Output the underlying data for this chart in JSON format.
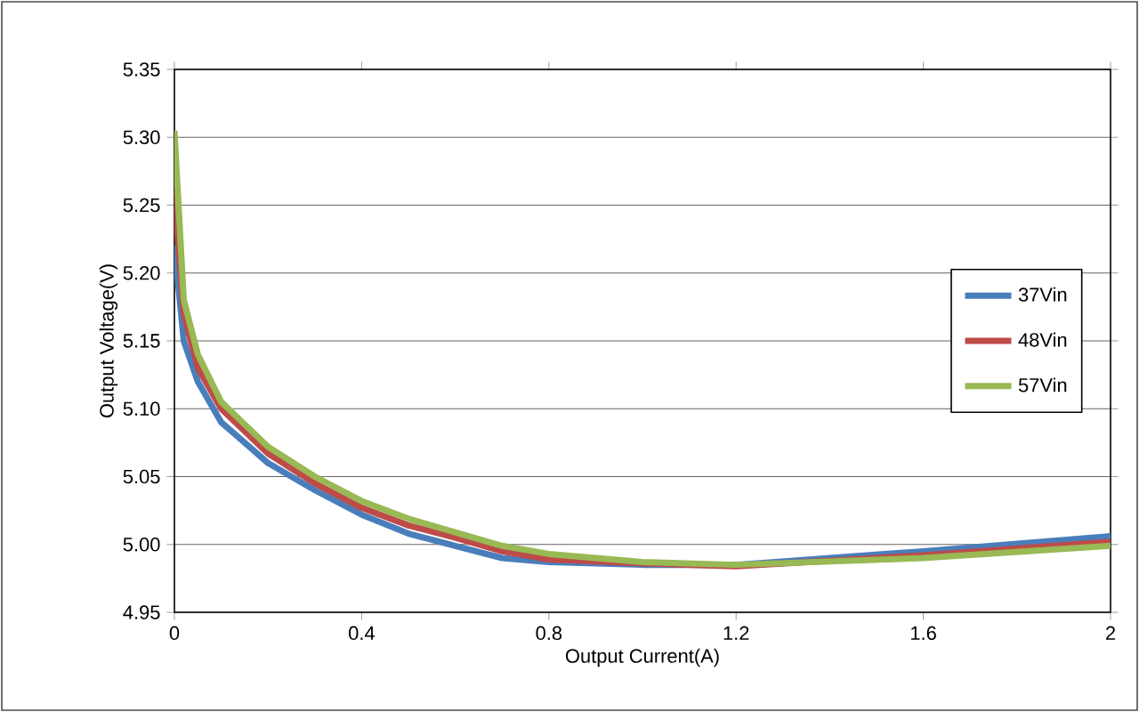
{
  "chart_data": {
    "type": "line",
    "xlabel": "Output Current(A)",
    "ylabel": "Output Voltage(V)",
    "xlim": [
      0,
      2
    ],
    "xticks": [
      0,
      0.4,
      0.8,
      1.2,
      1.6,
      2
    ],
    "ylim": [
      4.95,
      5.35
    ],
    "yticks": [
      4.95,
      {
        "value": 5.0,
        "label": "5.00"
      },
      5.05,
      {
        "value": 5.1,
        "label": "5.10"
      },
      5.15,
      {
        "value": 5.2,
        "label": "5.20"
      },
      5.25,
      {
        "value": 5.3,
        "label": "5.30"
      },
      5.35
    ],
    "grid": "y",
    "legend": "right",
    "marker": "none",
    "line_style": "solid",
    "x": [
      0,
      0.02,
      0.05,
      0.1,
      0.2,
      0.3,
      0.4,
      0.5,
      0.6,
      0.7,
      0.8,
      1.0,
      1.2,
      1.6,
      2.0
    ],
    "series": [
      {
        "name": "37Vin",
        "color": "#4a7ebb",
        "values": [
          5.22,
          5.15,
          5.12,
          5.09,
          5.06,
          5.04,
          5.022,
          5.008,
          4.999,
          4.99,
          4.987,
          4.985,
          4.985,
          4.995,
          5.006
        ]
      },
      {
        "name": "48Vin",
        "color": "#be4b48",
        "values": [
          5.26,
          5.17,
          5.13,
          5.1,
          5.067,
          5.045,
          5.027,
          5.014,
          5.005,
          4.995,
          4.989,
          4.986,
          4.984,
          4.992,
          5.002
        ]
      },
      {
        "name": "57Vin",
        "color": "#98b954",
        "values": [
          5.305,
          5.18,
          5.14,
          5.105,
          5.072,
          5.05,
          5.032,
          5.019,
          5.009,
          4.999,
          4.993,
          4.987,
          4.985,
          4.99,
          4.999
        ]
      }
    ]
  }
}
